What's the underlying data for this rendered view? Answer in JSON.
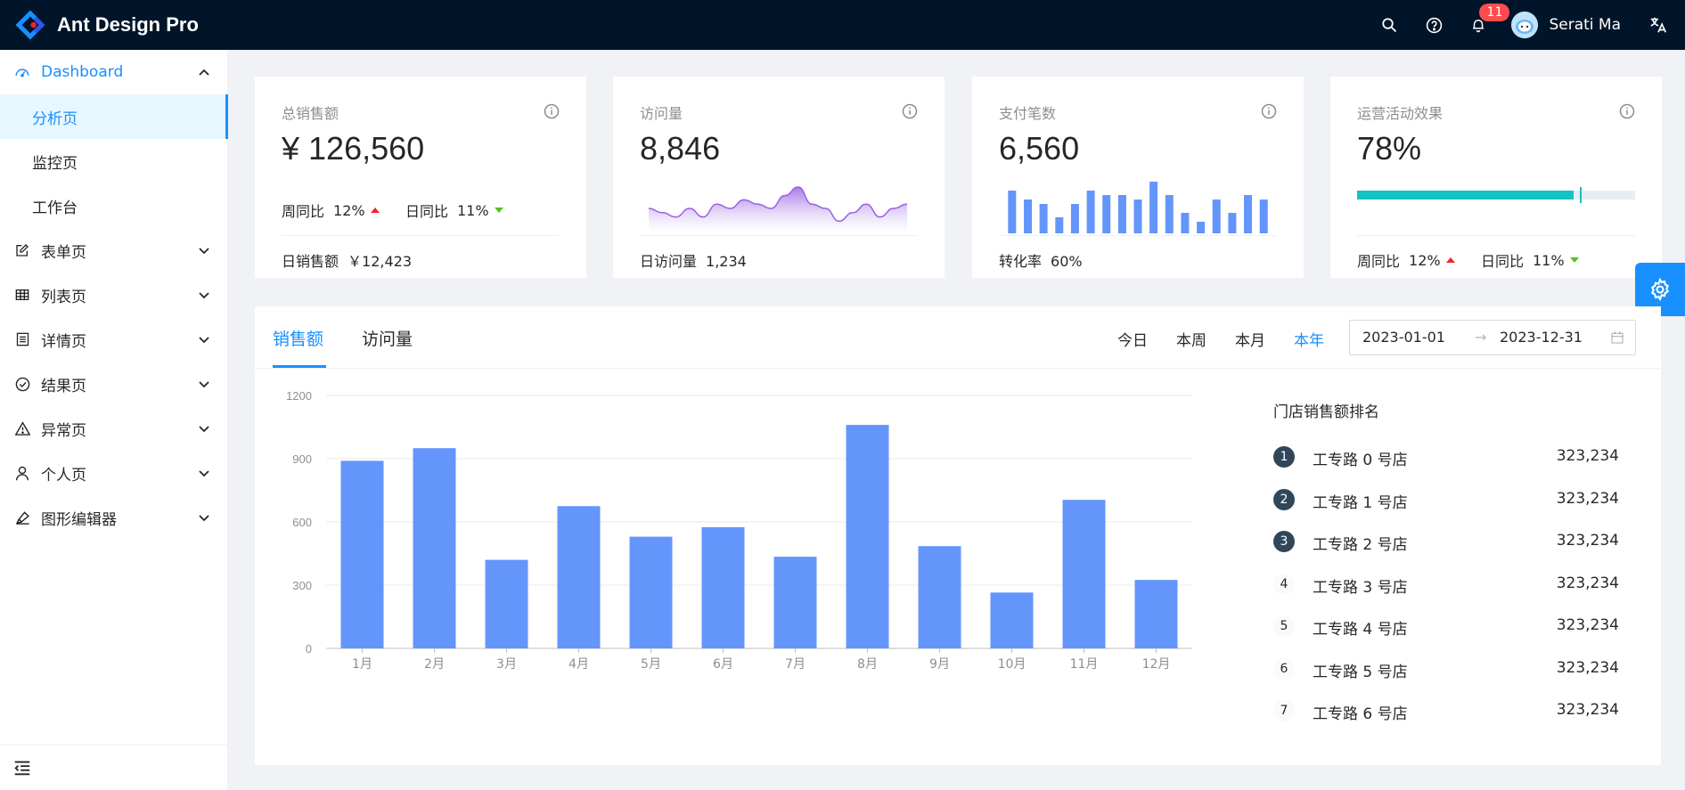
{
  "header": {
    "title": "Ant Design Pro",
    "notification_count": "11",
    "user_name": "Serati Ma"
  },
  "sidebar": {
    "dashboard": {
      "label": "Dashboard"
    },
    "sub_items": [
      {
        "label": "分析页",
        "active": true
      },
      {
        "label": "监控页"
      },
      {
        "label": "工作台"
      }
    ],
    "items": [
      {
        "label": "表单页",
        "icon": "form-icon"
      },
      {
        "label": "列表页",
        "icon": "table-icon"
      },
      {
        "label": "详情页",
        "icon": "profile-icon"
      },
      {
        "label": "结果页",
        "icon": "check-circle-icon"
      },
      {
        "label": "异常页",
        "icon": "warning-icon"
      },
      {
        "label": "个人页",
        "icon": "user-icon"
      },
      {
        "label": "图形编辑器",
        "icon": "highlight-icon"
      }
    ]
  },
  "cards": {
    "sales": {
      "title": "总销售额",
      "value": "¥ 126,560",
      "wow_label": "周同比",
      "wow_value": "12%",
      "dod_label": "日同比",
      "dod_value": "11%",
      "footer_label": "日销售额",
      "footer_value": "￥12,423"
    },
    "visits": {
      "title": "访问量",
      "value": "8,846",
      "footer_label": "日访问量",
      "footer_value": "1,234"
    },
    "payments": {
      "title": "支付笔数",
      "value": "6,560",
      "footer_label": "转化率",
      "footer_value": "60%"
    },
    "operations": {
      "title": "运营活动效果",
      "value": "78%",
      "progress": 0.78,
      "target": 0.8,
      "wow_label": "周同比",
      "wow_value": "12%",
      "dod_label": "日同比",
      "dod_value": "11%"
    }
  },
  "mini_charts": {
    "visits_area": [
      5,
      4,
      3,
      5,
      3,
      6,
      5,
      7,
      6,
      5,
      8,
      10,
      6,
      5,
      2,
      4,
      6,
      3,
      5,
      6
    ],
    "payments_bars": [
      8,
      6,
      5,
      2,
      5,
      8,
      7,
      7,
      6,
      10,
      7,
      3,
      1,
      6,
      3,
      7,
      6
    ]
  },
  "sales_panel": {
    "tabs": [
      "销售额",
      "访问量"
    ],
    "periods": [
      "今日",
      "本周",
      "本月",
      "本年"
    ],
    "active_period": "本年",
    "range_start": "2023-01-01",
    "range_end": "2023-12-31",
    "rank_title": "门店销售额排名",
    "ranks": [
      {
        "num": "1",
        "name": "工专路 0 号店",
        "value": "323,234"
      },
      {
        "num": "2",
        "name": "工专路 1 号店",
        "value": "323,234"
      },
      {
        "num": "3",
        "name": "工专路 2 号店",
        "value": "323,234"
      },
      {
        "num": "4",
        "name": "工专路 3 号店",
        "value": "323,234"
      },
      {
        "num": "5",
        "name": "工专路 4 号店",
        "value": "323,234"
      },
      {
        "num": "6",
        "name": "工专路 5 号店",
        "value": "323,234"
      },
      {
        "num": "7",
        "name": "工专路 6 号店",
        "value": "323,234"
      }
    ]
  },
  "chart_data": {
    "type": "bar",
    "title": "",
    "xlabel": "",
    "ylabel": "",
    "categories": [
      "1月",
      "2月",
      "3月",
      "4月",
      "5月",
      "6月",
      "7月",
      "8月",
      "9月",
      "10月",
      "11月",
      "12月"
    ],
    "values": [
      890,
      950,
      420,
      675,
      530,
      575,
      435,
      1060,
      485,
      265,
      705,
      325
    ],
    "ylim": [
      0,
      1200
    ],
    "yticks": [
      0,
      300,
      600,
      900,
      1200
    ],
    "grid": true,
    "color": "#6495fb"
  },
  "colors": {
    "primary": "#1890ff",
    "header_bg": "#001529",
    "bar": "#6495fb",
    "progress": "#13c2c2",
    "up": "#f5222d",
    "down": "#52c41a"
  }
}
